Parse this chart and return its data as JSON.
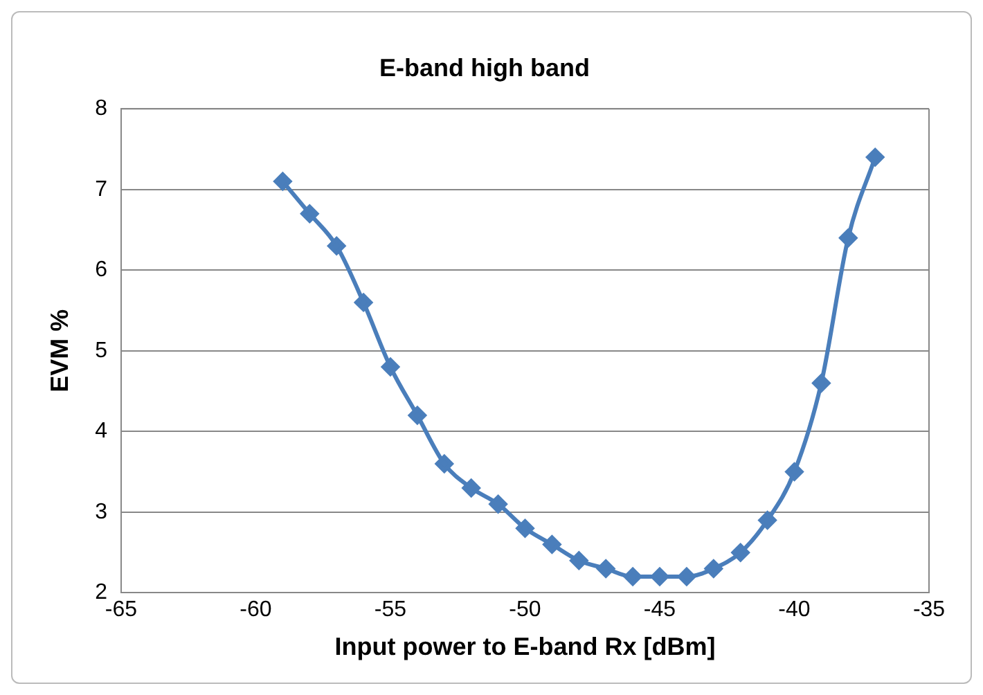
{
  "chart_data": {
    "type": "line",
    "title": "E-band high band",
    "xlabel": "Input power to E-band Rx [dBm]",
    "ylabel": "EVM %",
    "x": [
      -59,
      -58,
      -57,
      -56,
      -55,
      -54,
      -53,
      -52,
      -51,
      -50,
      -49,
      -48,
      -47,
      -46,
      -45,
      -44,
      -43,
      -42,
      -41,
      -40,
      -39,
      -38,
      -37
    ],
    "series": [
      {
        "color": "#4a7ebb",
        "values": [
          7.1,
          6.7,
          6.3,
          5.6,
          4.8,
          4.2,
          3.6,
          3.3,
          3.1,
          2.8,
          2.6,
          2.4,
          2.3,
          2.2,
          2.2,
          2.2,
          2.3,
          2.5,
          2.9,
          3.5,
          4.6,
          6.4,
          7.4
        ]
      }
    ],
    "xlim": [
      -65,
      -35
    ],
    "xticks": [
      -65,
      -60,
      -55,
      -50,
      -45,
      -40,
      -35
    ],
    "ylim": [
      2,
      8
    ],
    "yticks": [
      2,
      3,
      4,
      5,
      6,
      7,
      8
    ],
    "grid": "y",
    "legend": false,
    "marker": "diamond",
    "line_style": "solid"
  }
}
